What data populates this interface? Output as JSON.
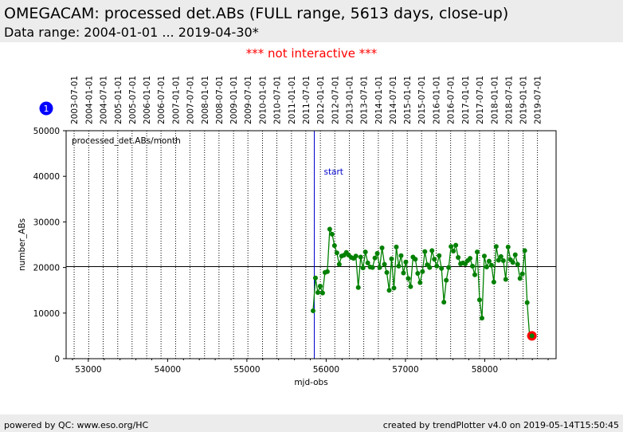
{
  "header": {
    "title": "OMEGACAM: processed det.ABs (FULL range, 5613 days, close-up)",
    "subtitle": "Data range: 2004-01-01 ... 2019-04-30*"
  },
  "notice": "*** not interactive ***",
  "footer": {
    "left": "powered by QC: www.eso.org/HC",
    "right": "created by trendPlotter v4.0 on 2019-05-14T15:50:45"
  },
  "colors": {
    "series": "#008000",
    "marker_last": "#ff0000",
    "start_line": "#0000cc",
    "badge": "#0000ff",
    "notice": "#ff0000"
  },
  "chart_data": {
    "type": "line",
    "xlabel": "mjd-obs",
    "ylabel": "number_ABs",
    "xlim": [
      52720,
      58900
    ],
    "ylim": [
      0,
      50000
    ],
    "x_ticks": [
      53000,
      54000,
      55000,
      56000,
      57000,
      58000
    ],
    "y_ticks": [
      0,
      10000,
      20000,
      30000,
      40000,
      50000
    ],
    "legend_label": "processed_det.ABs/month",
    "badge_label": "1",
    "reference_line_y": 20200,
    "start_marker": {
      "x": 55850,
      "label": "start"
    },
    "date_ticks": [
      {
        "label": "2003-07-01",
        "mjd": 52821
      },
      {
        "label": "2004-01-01",
        "mjd": 53005
      },
      {
        "label": "2004-07-01",
        "mjd": 53187
      },
      {
        "label": "2005-01-01",
        "mjd": 53371
      },
      {
        "label": "2005-07-01",
        "mjd": 53552
      },
      {
        "label": "2006-01-01",
        "mjd": 53736
      },
      {
        "label": "2006-07-01",
        "mjd": 53917
      },
      {
        "label": "2007-01-01",
        "mjd": 54101
      },
      {
        "label": "2007-07-01",
        "mjd": 54282
      },
      {
        "label": "2008-01-01",
        "mjd": 54466
      },
      {
        "label": "2008-07-01",
        "mjd": 54648
      },
      {
        "label": "2009-01-01",
        "mjd": 54832
      },
      {
        "label": "2009-07-01",
        "mjd": 55013
      },
      {
        "label": "2010-01-01",
        "mjd": 55197
      },
      {
        "label": "2010-07-01",
        "mjd": 55378
      },
      {
        "label": "2011-01-01",
        "mjd": 55562
      },
      {
        "label": "2011-07-01",
        "mjd": 55743
      },
      {
        "label": "2012-01-01",
        "mjd": 55927
      },
      {
        "label": "2012-07-01",
        "mjd": 56109
      },
      {
        "label": "2013-01-01",
        "mjd": 56293
      },
      {
        "label": "2013-07-01",
        "mjd": 56474
      },
      {
        "label": "2014-01-01",
        "mjd": 56658
      },
      {
        "label": "2014-07-01",
        "mjd": 56839
      },
      {
        "label": "2015-01-01",
        "mjd": 57023
      },
      {
        "label": "2015-07-01",
        "mjd": 57204
      },
      {
        "label": "2016-01-01",
        "mjd": 57388
      },
      {
        "label": "2016-07-01",
        "mjd": 57570
      },
      {
        "label": "2017-01-01",
        "mjd": 57754
      },
      {
        "label": "2017-07-01",
        "mjd": 57935
      },
      {
        "label": "2018-01-01",
        "mjd": 58119
      },
      {
        "label": "2018-07-01",
        "mjd": 58300
      },
      {
        "label": "2019-01-01",
        "mjd": 58484
      },
      {
        "label": "2019-07-01",
        "mjd": 58665
      }
    ],
    "series": [
      {
        "name": "processed_det.ABs/month",
        "x": [
          55835,
          55865,
          55895,
          55925,
          55955,
          55985,
          56015,
          56045,
          56075,
          56105,
          56135,
          56165,
          56195,
          56225,
          56255,
          56285,
          56315,
          56345,
          56375,
          56405,
          56435,
          56465,
          56495,
          56525,
          56555,
          56585,
          56615,
          56645,
          56675,
          56705,
          56735,
          56765,
          56795,
          56825,
          56855,
          56885,
          56915,
          56945,
          56975,
          57005,
          57035,
          57065,
          57095,
          57125,
          57155,
          57185,
          57215,
          57245,
          57275,
          57305,
          57335,
          57365,
          57395,
          57425,
          57455,
          57485,
          57515,
          57545,
          57575,
          57605,
          57635,
          57665,
          57695,
          57725,
          57755,
          57785,
          57815,
          57845,
          57875,
          57905,
          57935,
          57965,
          57995,
          58025,
          58055,
          58085,
          58115,
          58145,
          58175,
          58205,
          58235,
          58265,
          58295,
          58325,
          58355,
          58385,
          58415,
          58445,
          58475,
          58505,
          58535,
          58565,
          58595
        ],
        "y": [
          10500,
          17700,
          14500,
          15900,
          14400,
          18900,
          19100,
          28400,
          27300,
          24800,
          23200,
          20700,
          22500,
          22700,
          23300,
          22700,
          22200,
          22000,
          22500,
          15600,
          22300,
          19900,
          23400,
          21000,
          20100,
          20000,
          22100,
          23100,
          20000,
          24300,
          20700,
          18900,
          15000,
          21900,
          15500,
          24500,
          20300,
          22600,
          18800,
          21200,
          17600,
          15800,
          22300,
          21800,
          18700,
          16700,
          19100,
          23500,
          20600,
          20000,
          23700,
          21800,
          20300,
          22600,
          19800,
          12400,
          17200,
          20000,
          24600,
          23600,
          24900,
          22200,
          20800,
          21000,
          20800,
          21500,
          22000,
          20300,
          18400,
          23400,
          12900,
          8900,
          22500,
          20100,
          21400,
          20500,
          16800,
          24600,
          21600,
          22400,
          21500,
          17400,
          24500,
          21700,
          21100,
          22800,
          20700,
          17600,
          18600,
          23700,
          12300,
          5000,
          5000
        ]
      }
    ],
    "highlight_point": {
      "x": 58595,
      "y": 5000
    }
  }
}
